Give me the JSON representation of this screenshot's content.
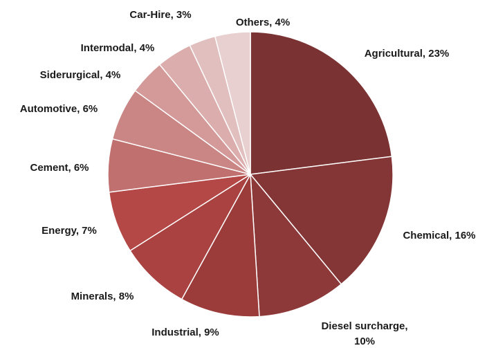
{
  "chart_data": {
    "type": "pie",
    "title": "",
    "start_angle_deg": 0,
    "direction": "clockwise",
    "slices": [
      {
        "label": "Agricultural, 23%",
        "category": "Agricultural",
        "value": 23,
        "color": "#7A3232"
      },
      {
        "label": "Chemical, 16%",
        "category": "Chemical",
        "value": 16,
        "color": "#843535"
      },
      {
        "label": "Diesel surcharge,",
        "label2": "10%",
        "category": "Diesel surcharge",
        "value": 10,
        "color": "#8E3939"
      },
      {
        "label": "Industrial, 9%",
        "category": "Industrial",
        "value": 9,
        "color": "#9B3C3A"
      },
      {
        "label": "Minerals, 8%",
        "category": "Minerals",
        "value": 8,
        "color": "#A94240"
      },
      {
        "label": "Energy, 7%",
        "category": "Energy",
        "value": 7,
        "color": "#B44846"
      },
      {
        "label": "Cement, 6%",
        "category": "Cement",
        "value": 6,
        "color": "#C0716F"
      },
      {
        "label": "Automotive, 6%",
        "category": "Automotive",
        "value": 6,
        "color": "#C98685"
      },
      {
        "label": "Siderurgical, 4%",
        "category": "Siderurgical",
        "value": 4,
        "color": "#D39A99"
      },
      {
        "label": "Intermodal, 4%",
        "category": "Intermodal",
        "value": 4,
        "color": "#DBAEAD"
      },
      {
        "label": "Car-Hire, 3%",
        "category": "Car-Hire",
        "value": 3,
        "color": "#E2BFBF"
      },
      {
        "label": "Others, 4%",
        "category": "Others",
        "value": 4,
        "color": "#E9D0D0"
      }
    ]
  }
}
